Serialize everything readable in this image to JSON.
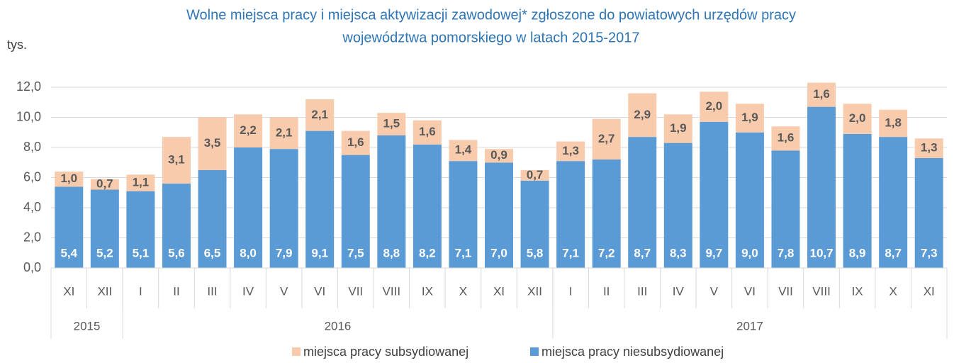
{
  "chart_data": {
    "type": "stacked_bar",
    "title": [
      "Wolne miejsca pracy i miejsca aktywizacji zawodowej* zgłoszone do powiatowych urzędów pracy",
      "województwa pomorskiego w latach 2015-2017"
    ],
    "y_label": "tys.",
    "categories": [
      "XI",
      "XII",
      "I",
      "II",
      "III",
      "IV",
      "V",
      "VI",
      "VII",
      "VIII",
      "IX",
      "X",
      "XI",
      "XII",
      "I",
      "II",
      "III",
      "IV",
      "V",
      "VI",
      "VII",
      "VIII",
      "IX",
      "X",
      "XI"
    ],
    "category_groups": [
      {
        "label": "2015",
        "count": 2
      },
      {
        "label": "2016",
        "count": 12
      },
      {
        "label": "2017",
        "count": 11
      }
    ],
    "series": [
      {
        "name": "miejsca pracy niesubsydiowanej",
        "color": "#5b9bd5",
        "values": [
          5.4,
          5.2,
          5.1,
          5.6,
          6.5,
          8.0,
          7.9,
          9.1,
          7.5,
          8.8,
          8.2,
          7.1,
          7.0,
          5.8,
          7.1,
          7.2,
          8.7,
          8.3,
          9.7,
          9.0,
          7.8,
          10.7,
          8.9,
          8.7,
          7.3
        ],
        "value_labels": [
          "5,4",
          "5,2",
          "5,1",
          "5,6",
          "6,5",
          "8,0",
          "7,9",
          "9,1",
          "7,5",
          "8,8",
          "8,2",
          "7,1",
          "7,0",
          "5,8",
          "7,1",
          "7,2",
          "8,7",
          "8,3",
          "9,7",
          "9,0",
          "7,8",
          "10,7",
          "8,9",
          "8,7",
          "7,3"
        ]
      },
      {
        "name": "miejsca pracy subsydiowanej",
        "color": "#f8cbad",
        "values": [
          1.0,
          0.7,
          1.1,
          3.1,
          3.5,
          2.2,
          2.1,
          2.1,
          1.6,
          1.5,
          1.6,
          1.4,
          0.9,
          0.7,
          1.3,
          2.7,
          2.9,
          1.9,
          2.0,
          1.9,
          1.6,
          1.6,
          2.0,
          1.8,
          1.3
        ],
        "value_labels": [
          "1,0",
          "0,7",
          "1,1",
          "3,1",
          "3,5",
          "2,2",
          "2,1",
          "2,1",
          "1,6",
          "1,5",
          "1,6",
          "1,4",
          "0,9",
          "0,7",
          "1,3",
          "2,7",
          "2,9",
          "1,9",
          "2,0",
          "1,9",
          "1,6",
          "1,6",
          "2,0",
          "1,8",
          "1,3"
        ]
      }
    ],
    "ylim": [
      0,
      12
    ],
    "yticks": [
      {
        "value": 0,
        "label": "0,0"
      },
      {
        "value": 2,
        "label": "2,0"
      },
      {
        "value": 4,
        "label": "4,0"
      },
      {
        "value": 6,
        "label": "6,0"
      },
      {
        "value": 8,
        "label": "8,0"
      },
      {
        "value": 10,
        "label": "10,0"
      },
      {
        "value": 12,
        "label": "12,0"
      }
    ],
    "grid": true
  }
}
